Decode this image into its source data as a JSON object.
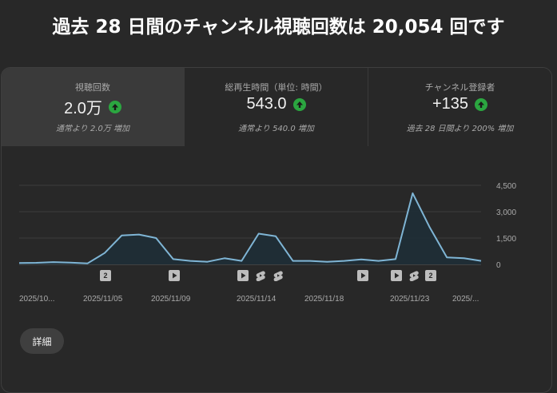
{
  "headline": "過去 28 日間のチャンネル視聴回数は 20,054 回です",
  "tiles": [
    {
      "label": "視聴回数",
      "value": "2.0万",
      "sub": "通常より 2.0万 増加",
      "trend": "up"
    },
    {
      "label": "総再生時間（単位: 時間）",
      "value": "543.0",
      "sub": "通常より 540.0 増加",
      "trend": "up"
    },
    {
      "label": "チャンネル登録者",
      "value": "+135",
      "sub": "過去 28 日間より 200% 増加",
      "trend": "up"
    }
  ],
  "colors": {
    "line": "#7fb5d5",
    "area": "#1f2d36",
    "trend_up": "#2ba640"
  },
  "chart_data": {
    "type": "area",
    "y_ticks": [
      "4,500",
      "3,000",
      "1,500",
      "0"
    ],
    "ylim": [
      0,
      4500
    ],
    "x_tick_labels": [
      "2025/10...",
      "2025/11/05",
      "2025/11/09",
      "2025/11/14",
      "2025/11/18",
      "2025/11/23",
      "2025/..."
    ],
    "values": [
      80,
      90,
      130,
      100,
      60,
      650,
      1650,
      1700,
      1500,
      300,
      200,
      150,
      350,
      200,
      1750,
      1600,
      200,
      200,
      150,
      200,
      280,
      200,
      300,
      4050,
      2100,
      400,
      350,
      200
    ],
    "markers": [
      {
        "type": "count",
        "label": "2"
      },
      {
        "type": "video"
      },
      {
        "type": "video"
      },
      {
        "type": "short"
      },
      {
        "type": "short"
      },
      {
        "type": "video"
      },
      {
        "type": "video"
      },
      {
        "type": "short"
      },
      {
        "type": "count",
        "label": "2"
      }
    ]
  },
  "detail_button": "詳細"
}
